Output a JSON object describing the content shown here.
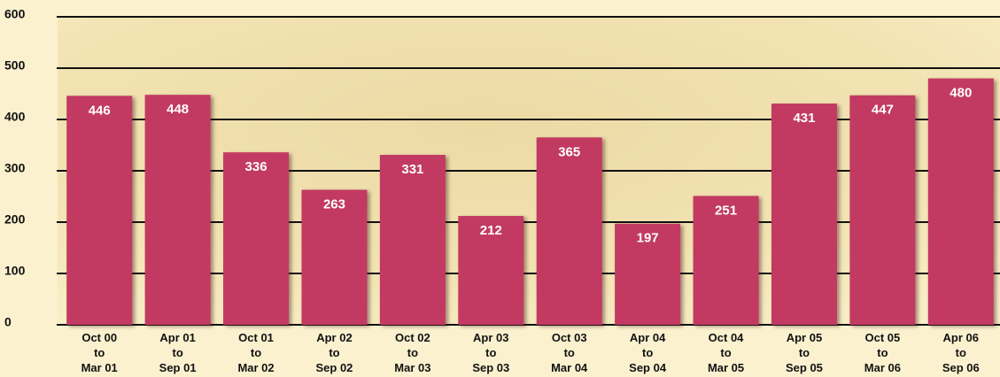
{
  "chart_data": {
    "type": "bar",
    "categories": [
      [
        "Oct 00",
        "to",
        "Mar 01"
      ],
      [
        "Apr 01",
        "to",
        "Sep 01"
      ],
      [
        "Oct 01",
        "to",
        "Mar 02"
      ],
      [
        "Apr 02",
        "to",
        "Sep 02"
      ],
      [
        "Oct 02",
        "to",
        "Mar 03"
      ],
      [
        "Apr 03",
        "to",
        "Sep 03"
      ],
      [
        "Oct 03",
        "to",
        "Mar 04"
      ],
      [
        "Apr 04",
        "to",
        "Sep 04"
      ],
      [
        "Oct 04",
        "to",
        "Mar 05"
      ],
      [
        "Apr 05",
        "to",
        "Sep 05"
      ],
      [
        "Oct 05",
        "to",
        "Mar 06"
      ],
      [
        "Apr 06",
        "to",
        "Sep 06"
      ]
    ],
    "values": [
      446,
      448,
      336,
      263,
      331,
      212,
      365,
      197,
      251,
      431,
      447,
      480
    ],
    "color": "#c23a62",
    "ylim": [
      0,
      600
    ],
    "yticks": [
      0,
      100,
      200,
      300,
      400,
      500,
      600
    ],
    "grid": true
  }
}
